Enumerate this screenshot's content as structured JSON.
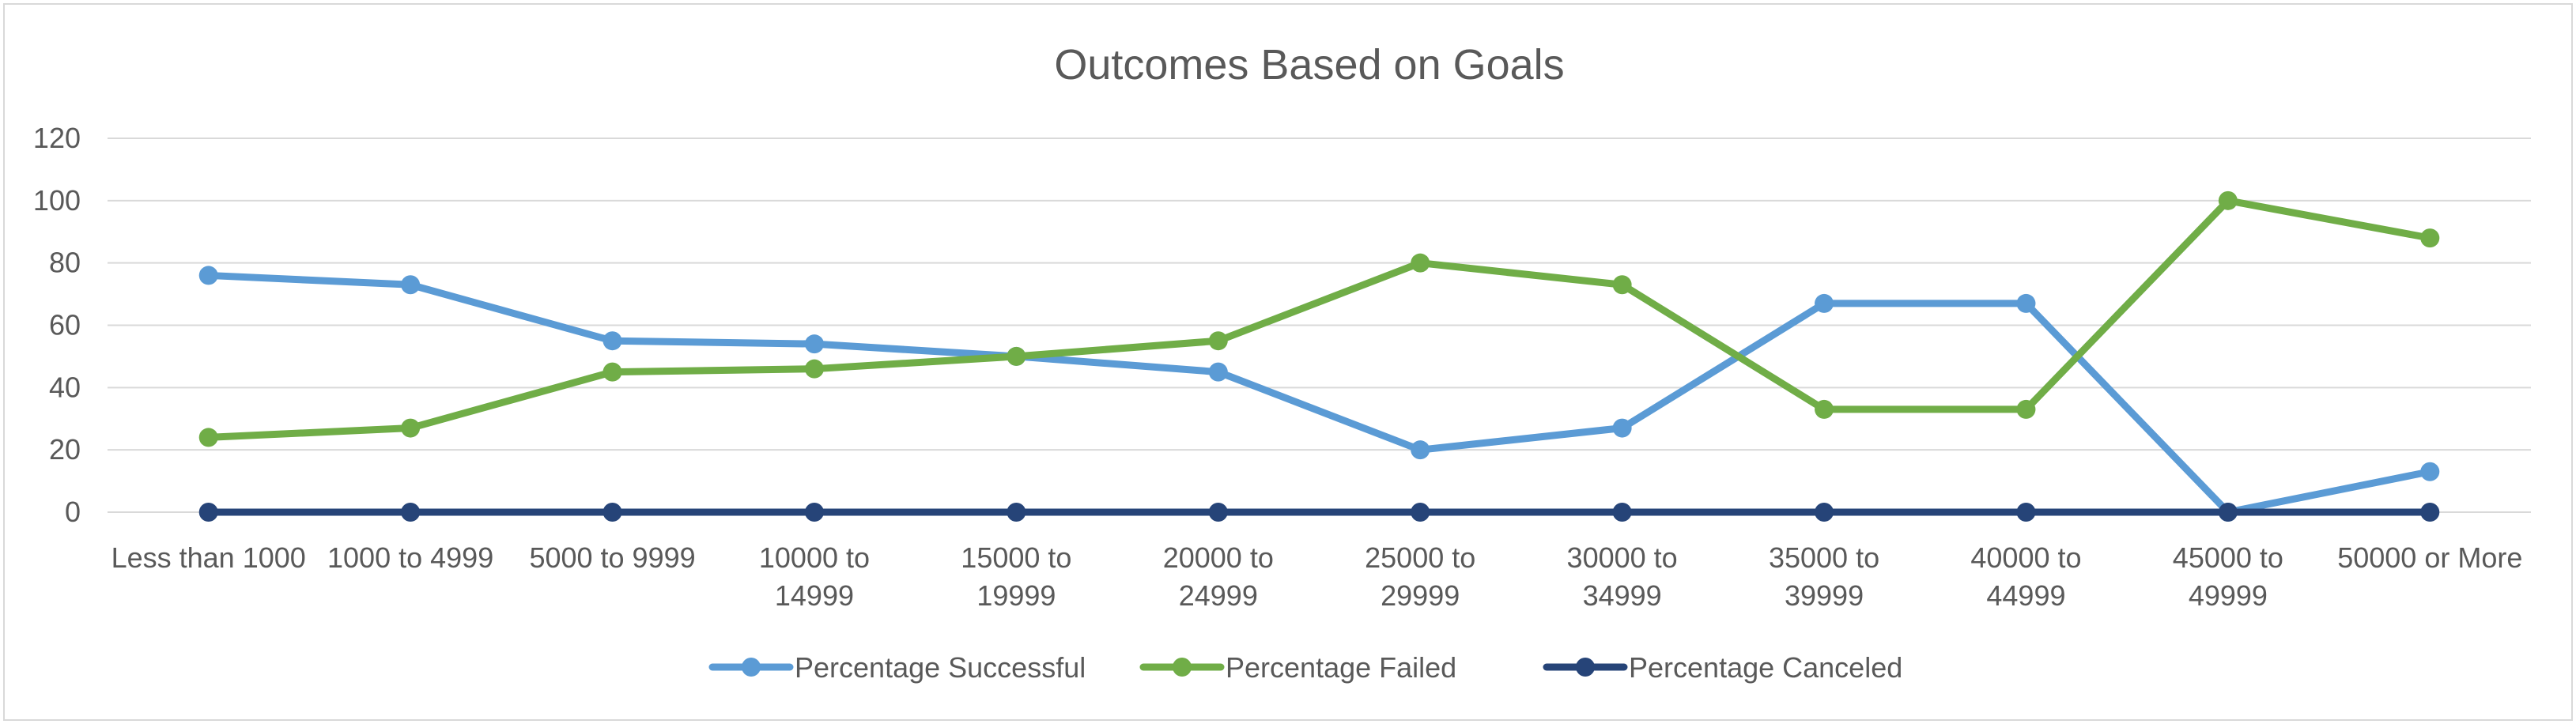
{
  "chart_data": {
    "type": "line",
    "title": "Outcomes Based on Goals",
    "xlabel": "",
    "ylabel": "",
    "ylim": [
      0,
      120
    ],
    "yticks": [
      0,
      20,
      40,
      60,
      80,
      100,
      120
    ],
    "grid": true,
    "legend_position": "bottom",
    "categories": [
      "Less than 1000",
      "1000 to 4999",
      "5000 to 9999",
      "10000 to 14999",
      "15000 to 19999",
      "20000 to 24999",
      "25000 to 29999",
      "30000 to 34999",
      "35000 to 39999",
      "40000 to 44999",
      "45000 to 49999",
      "50000 or More"
    ],
    "series": [
      {
        "name": "Percentage Successful",
        "color": "#5b9bd5",
        "values": [
          76,
          73,
          55,
          54,
          50,
          45,
          20,
          27,
          67,
          67,
          0,
          13
        ]
      },
      {
        "name": "Percentage Failed",
        "color": "#70ad47",
        "values": [
          24,
          27,
          45,
          46,
          50,
          55,
          80,
          73,
          33,
          33,
          100,
          88
        ]
      },
      {
        "name": "Percentage Canceled",
        "color": "#264478",
        "values": [
          0,
          0,
          0,
          0,
          0,
          0,
          0,
          0,
          0,
          0,
          0,
          0
        ]
      }
    ]
  }
}
